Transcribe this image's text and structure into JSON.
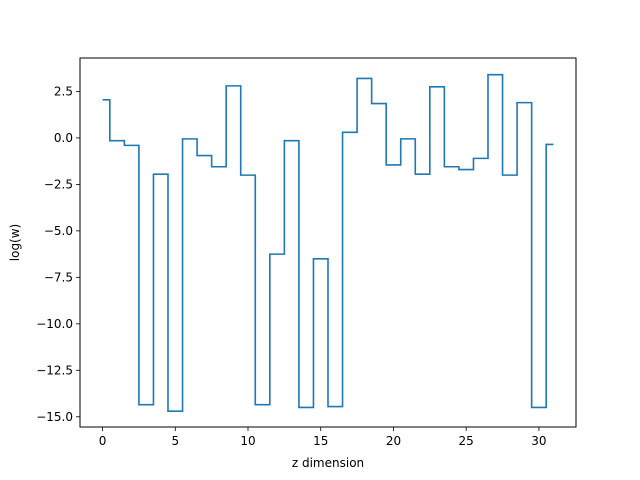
{
  "chart_data": {
    "type": "line",
    "drawstyle": "steps-mid",
    "xlabel": "z dimension",
    "ylabel": "log(w)",
    "xlim": [
      -1.55,
      32.55
    ],
    "ylim": [
      -15.55,
      4.3
    ],
    "xticks": [
      0,
      5,
      10,
      15,
      20,
      25,
      30
    ],
    "yticks": [
      2.5,
      0.0,
      -2.5,
      -5.0,
      -7.5,
      -10.0,
      -12.5,
      -15.0
    ],
    "xtick_labels": [
      "0",
      "5",
      "10",
      "15",
      "20",
      "25",
      "30"
    ],
    "ytick_labels": [
      "2.5",
      "0.0",
      "−2.5",
      "−5.0",
      "−7.5",
      "−10.0",
      "−12.5",
      "−15.0"
    ],
    "grid": false,
    "series": [
      {
        "color": "#1f77b4",
        "x": [
          0,
          1,
          2,
          3,
          4,
          5,
          6,
          7,
          8,
          9,
          10,
          11,
          12,
          13,
          14,
          15,
          16,
          17,
          18,
          19,
          20,
          21,
          22,
          23,
          24,
          25,
          26,
          27,
          28,
          29,
          30,
          31
        ],
        "y": [
          2.05,
          -0.15,
          -0.4,
          -14.35,
          -1.95,
          -14.7,
          -0.05,
          -0.95,
          -1.55,
          2.8,
          -2.0,
          -14.35,
          -6.25,
          -0.15,
          -14.5,
          -6.5,
          -14.45,
          0.3,
          3.2,
          1.85,
          -1.45,
          -0.05,
          -1.95,
          2.75,
          -1.55,
          -1.7,
          -1.1,
          3.4,
          -2.0,
          1.9,
          -14.5,
          -0.35
        ]
      }
    ]
  }
}
